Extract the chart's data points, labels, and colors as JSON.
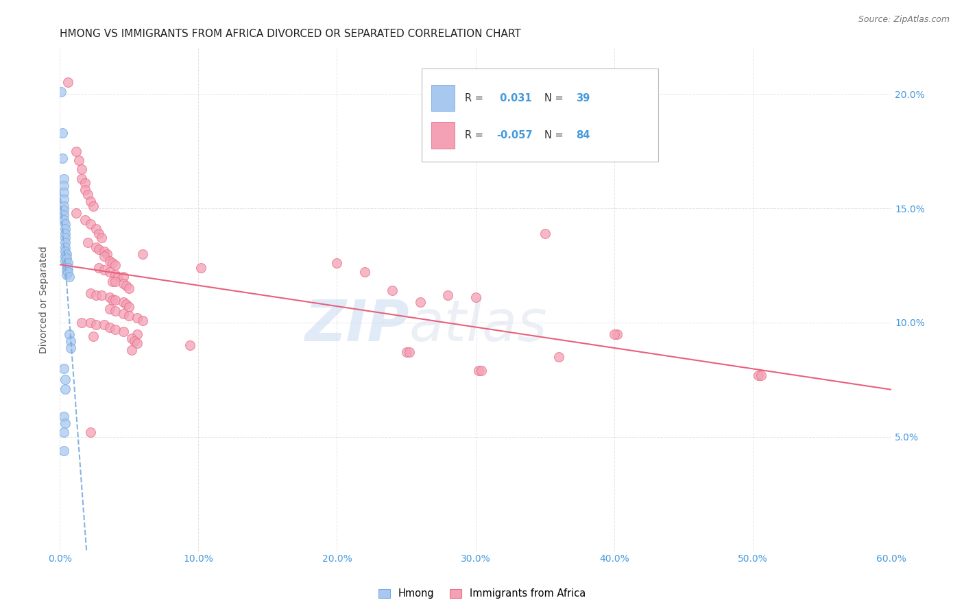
{
  "title": "HMONG VS IMMIGRANTS FROM AFRICA DIVORCED OR SEPARATED CORRELATION CHART",
  "source": "Source: ZipAtlas.com",
  "xlabel_ticks": [
    "0.0%",
    "10.0%",
    "20.0%",
    "30.0%",
    "40.0%",
    "50.0%",
    "60.0%"
  ],
  "xlabel_vals": [
    0.0,
    0.1,
    0.2,
    0.3,
    0.4,
    0.5,
    0.6
  ],
  "ylabel": "Divorced or Separated",
  "ylabel_ticks": [
    "5.0%",
    "10.0%",
    "15.0%",
    "20.0%"
  ],
  "ylabel_vals": [
    0.05,
    0.1,
    0.15,
    0.2
  ],
  "xlim": [
    0.0,
    0.6
  ],
  "ylim": [
    0.0,
    0.22
  ],
  "watermark_zip": "ZIP",
  "watermark_atlas": "atlas",
  "legend_hmong_R": " 0.031",
  "legend_hmong_N": "39",
  "legend_africa_R": "-0.057",
  "legend_africa_N": "84",
  "hmong_color": "#a8c8f0",
  "africa_color": "#f4a0b5",
  "hmong_edge_color": "#7aabde",
  "africa_edge_color": "#e8708a",
  "hmong_trendline_color": "#7aabde",
  "africa_trendline_color": "#e8607a",
  "tick_color": "#4499dd",
  "grid_color": "#dddddd",
  "background_color": "#ffffff",
  "hmong_points": [
    [
      0.001,
      0.201
    ],
    [
      0.002,
      0.183
    ],
    [
      0.002,
      0.172
    ],
    [
      0.003,
      0.163
    ],
    [
      0.003,
      0.16
    ],
    [
      0.003,
      0.157
    ],
    [
      0.003,
      0.154
    ],
    [
      0.003,
      0.151
    ],
    [
      0.003,
      0.149
    ],
    [
      0.003,
      0.147
    ],
    [
      0.003,
      0.145
    ],
    [
      0.004,
      0.143
    ],
    [
      0.004,
      0.141
    ],
    [
      0.004,
      0.139
    ],
    [
      0.004,
      0.137
    ],
    [
      0.004,
      0.135
    ],
    [
      0.004,
      0.133
    ],
    [
      0.004,
      0.131
    ],
    [
      0.004,
      0.129
    ],
    [
      0.004,
      0.127
    ],
    [
      0.005,
      0.125
    ],
    [
      0.005,
      0.123
    ],
    [
      0.005,
      0.121
    ],
    [
      0.005,
      0.13
    ],
    [
      0.005,
      0.128
    ],
    [
      0.006,
      0.126
    ],
    [
      0.006,
      0.124
    ],
    [
      0.006,
      0.122
    ],
    [
      0.007,
      0.12
    ],
    [
      0.007,
      0.095
    ],
    [
      0.008,
      0.092
    ],
    [
      0.008,
      0.089
    ],
    [
      0.003,
      0.08
    ],
    [
      0.004,
      0.075
    ],
    [
      0.004,
      0.071
    ],
    [
      0.003,
      0.059
    ],
    [
      0.004,
      0.056
    ],
    [
      0.003,
      0.052
    ],
    [
      0.003,
      0.044
    ]
  ],
  "africa_points": [
    [
      0.006,
      0.205
    ],
    [
      0.012,
      0.175
    ],
    [
      0.014,
      0.171
    ],
    [
      0.016,
      0.167
    ],
    [
      0.016,
      0.163
    ],
    [
      0.018,
      0.161
    ],
    [
      0.018,
      0.158
    ],
    [
      0.02,
      0.156
    ],
    [
      0.022,
      0.153
    ],
    [
      0.024,
      0.151
    ],
    [
      0.012,
      0.148
    ],
    [
      0.018,
      0.145
    ],
    [
      0.022,
      0.143
    ],
    [
      0.026,
      0.141
    ],
    [
      0.028,
      0.139
    ],
    [
      0.03,
      0.137
    ],
    [
      0.02,
      0.135
    ],
    [
      0.026,
      0.133
    ],
    [
      0.028,
      0.132
    ],
    [
      0.032,
      0.131
    ],
    [
      0.034,
      0.13
    ],
    [
      0.032,
      0.129
    ],
    [
      0.036,
      0.127
    ],
    [
      0.038,
      0.126
    ],
    [
      0.04,
      0.125
    ],
    [
      0.028,
      0.124
    ],
    [
      0.032,
      0.123
    ],
    [
      0.036,
      0.122
    ],
    [
      0.04,
      0.121
    ],
    [
      0.042,
      0.12
    ],
    [
      0.046,
      0.12
    ],
    [
      0.038,
      0.118
    ],
    [
      0.04,
      0.118
    ],
    [
      0.046,
      0.117
    ],
    [
      0.048,
      0.116
    ],
    [
      0.05,
      0.115
    ],
    [
      0.022,
      0.113
    ],
    [
      0.026,
      0.112
    ],
    [
      0.03,
      0.112
    ],
    [
      0.036,
      0.111
    ],
    [
      0.038,
      0.11
    ],
    [
      0.04,
      0.11
    ],
    [
      0.046,
      0.109
    ],
    [
      0.048,
      0.108
    ],
    [
      0.05,
      0.107
    ],
    [
      0.036,
      0.106
    ],
    [
      0.04,
      0.105
    ],
    [
      0.046,
      0.104
    ],
    [
      0.05,
      0.103
    ],
    [
      0.056,
      0.102
    ],
    [
      0.06,
      0.101
    ],
    [
      0.016,
      0.1
    ],
    [
      0.022,
      0.1
    ],
    [
      0.026,
      0.099
    ],
    [
      0.032,
      0.099
    ],
    [
      0.036,
      0.098
    ],
    [
      0.04,
      0.097
    ],
    [
      0.046,
      0.096
    ],
    [
      0.056,
      0.095
    ],
    [
      0.06,
      0.13
    ],
    [
      0.35,
      0.139
    ],
    [
      0.024,
      0.094
    ],
    [
      0.094,
      0.09
    ],
    [
      0.2,
      0.126
    ],
    [
      0.102,
      0.124
    ],
    [
      0.22,
      0.122
    ],
    [
      0.052,
      0.093
    ],
    [
      0.24,
      0.114
    ],
    [
      0.28,
      0.112
    ],
    [
      0.3,
      0.111
    ],
    [
      0.052,
      0.088
    ],
    [
      0.26,
      0.109
    ],
    [
      0.36,
      0.085
    ],
    [
      0.25,
      0.087
    ],
    [
      0.252,
      0.087
    ],
    [
      0.302,
      0.079
    ],
    [
      0.304,
      0.079
    ],
    [
      0.504,
      0.077
    ],
    [
      0.506,
      0.077
    ],
    [
      0.022,
      0.052
    ],
    [
      0.402,
      0.095
    ],
    [
      0.054,
      0.092
    ],
    [
      0.056,
      0.091
    ],
    [
      0.4,
      0.095
    ]
  ]
}
